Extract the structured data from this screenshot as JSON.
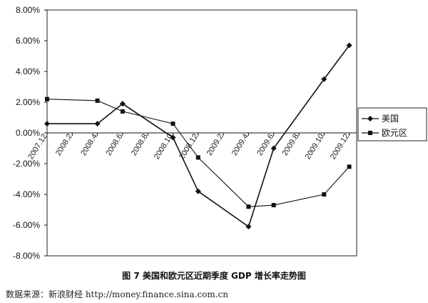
{
  "caption": "图 7   美国和欧元区近期季度 GDP 增长率走势图",
  "source": "数据来源：新浪财经 http://money.finance.sina.com.cn",
  "chart_data": {
    "type": "line",
    "title": "",
    "xlabel": "",
    "ylabel": "",
    "ylim": [
      -8,
      8
    ],
    "y_ticks": [
      "8.00%",
      "6.00%",
      "4.00%",
      "2.00%",
      "0.00%",
      "-2.00%",
      "-4.00%",
      "-6.00%",
      "-8.00%"
    ],
    "y_tick_values": [
      8,
      6,
      4,
      2,
      0,
      -2,
      -4,
      -6,
      -8
    ],
    "x_ticks": [
      "2007.12",
      "2008.2",
      "2008.4",
      "2008.6",
      "2008.8",
      "2008.10",
      "2008.12",
      "2009.2",
      "2009.4",
      "2009.6",
      "2009.8",
      "2009.10",
      "2009.12"
    ],
    "x": [
      "2007.12",
      "2008.4",
      "2008.6",
      "2008.10",
      "2008.12",
      "2009.2",
      "2009.4",
      "2009.6",
      "2009.10",
      "2009.12"
    ],
    "series": [
      {
        "name": "美国",
        "marker": "diamond",
        "values": [
          0.6,
          0.6,
          1.9,
          -0.3,
          -3.8,
          null,
          -6.1,
          -1.0,
          3.5,
          5.7
        ]
      },
      {
        "name": "欧元区",
        "marker": "square",
        "values": [
          2.2,
          2.1,
          1.4,
          0.6,
          -1.6,
          null,
          -4.8,
          -4.7,
          -4.0,
          -2.2
        ]
      }
    ],
    "legend_position": "right",
    "grid": false,
    "line_color": "#111111"
  }
}
